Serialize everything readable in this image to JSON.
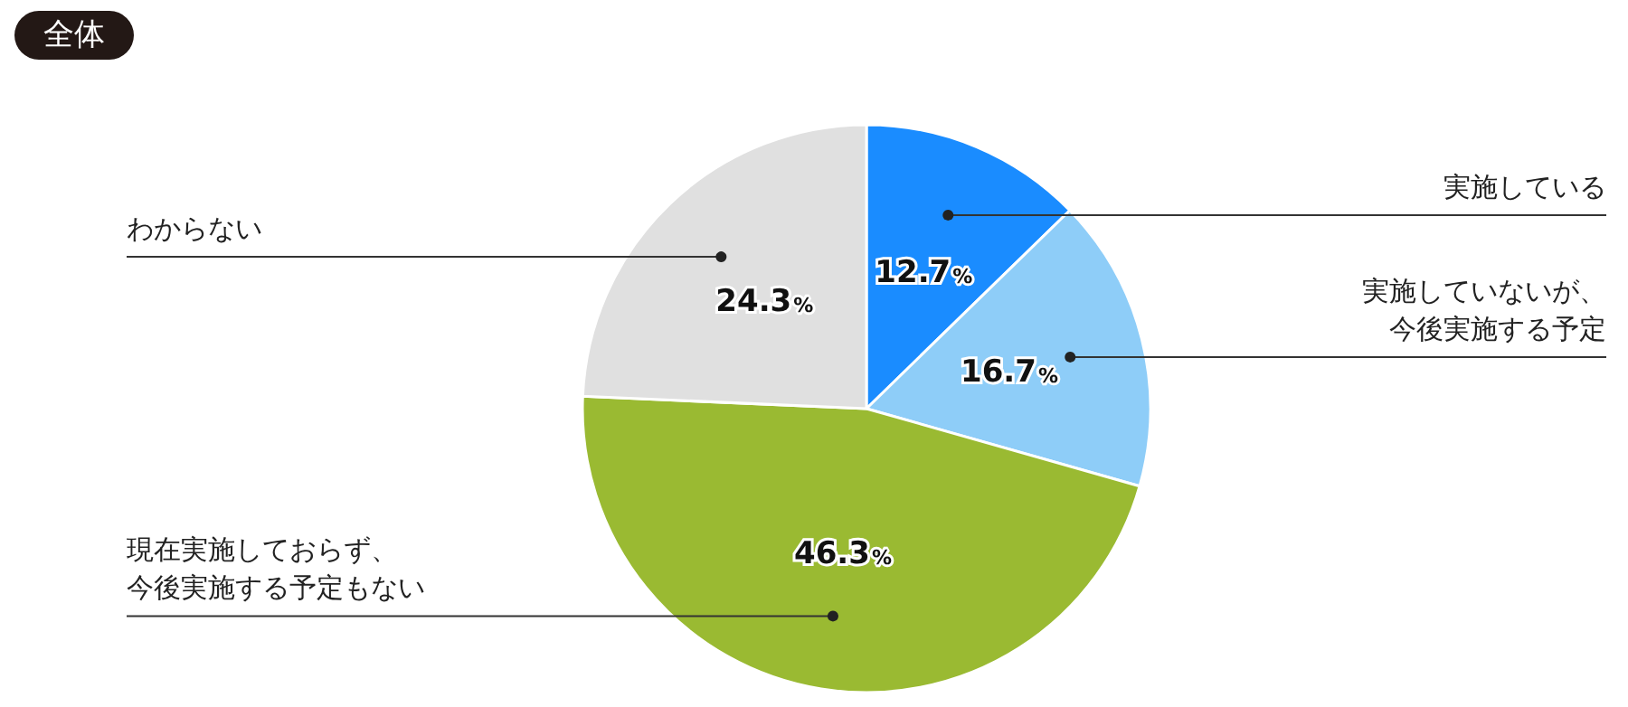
{
  "chart_data": {
    "type": "pie",
    "title": "全体",
    "categories": [
      "実施している",
      "実施していないが、今後実施する予定",
      "現在実施しておらず、今後実施する予定もない",
      "わからない"
    ],
    "values": [
      12.7,
      16.7,
      46.3,
      24.3
    ],
    "colors": [
      "#1a8cff",
      "#8ecdf8",
      "#9aba32",
      "#e0e0e0"
    ],
    "value_labels": [
      "12.7%",
      "16.7%",
      "46.3%",
      "24.3%"
    ],
    "legend": false
  }
}
